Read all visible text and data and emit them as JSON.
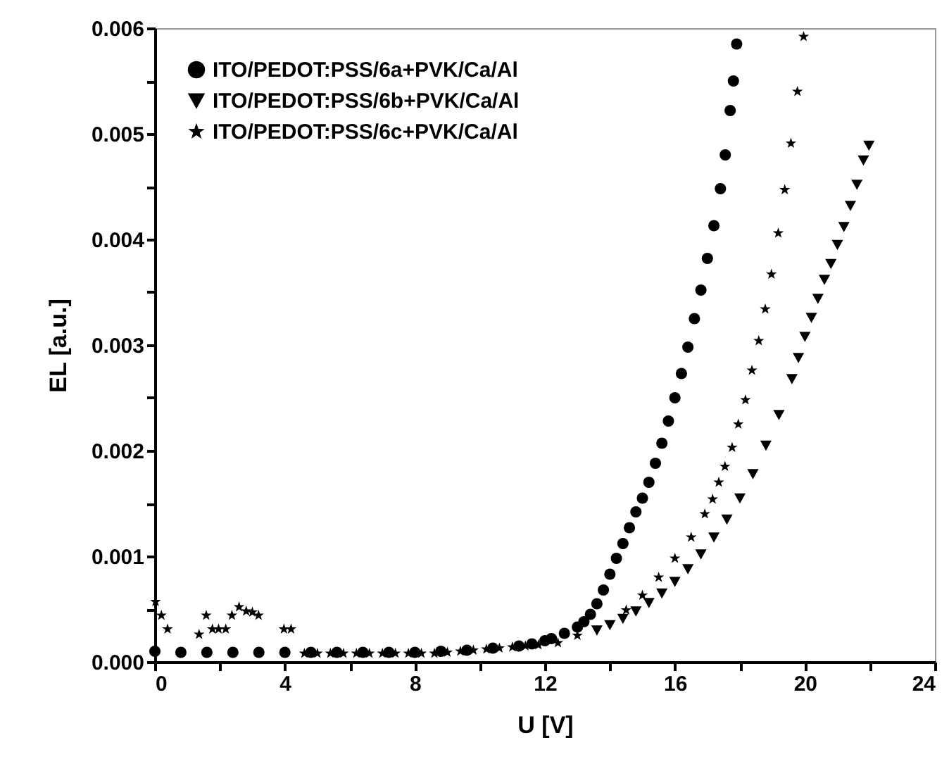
{
  "chart_data": {
    "type": "scatter",
    "xlabel": "U [V]",
    "ylabel": "EL [a.u.]",
    "xlim": [
      0,
      24
    ],
    "ylim": [
      0,
      0.006
    ],
    "xticks": [
      0,
      {
        "value": 2,
        "label": null
      },
      4,
      {
        "value": 6,
        "label": null
      },
      8,
      {
        "value": 10,
        "label": null
      },
      12,
      {
        "value": 14,
        "label": null
      },
      16,
      {
        "value": 18,
        "label": null
      },
      20,
      {
        "value": 22,
        "label": null
      },
      24
    ],
    "yticks": [
      {
        "value": 0,
        "label": "0.000"
      },
      {
        "value": 0.0005,
        "label": null
      },
      {
        "value": 0.001,
        "label": "0.001"
      },
      {
        "value": 0.0015,
        "label": null
      },
      {
        "value": 0.002,
        "label": "0.002"
      },
      {
        "value": 0.0025,
        "label": null
      },
      {
        "value": 0.003,
        "label": "0.003"
      },
      {
        "value": 0.0035,
        "label": null
      },
      {
        "value": 0.004,
        "label": "0.004"
      },
      {
        "value": 0.0045,
        "label": null
      },
      {
        "value": 0.005,
        "label": "0.005"
      },
      {
        "value": 0.0055,
        "label": null
      },
      {
        "value": 0.006,
        "label": "0.006"
      }
    ],
    "grid": false,
    "legend": "top left",
    "series": [
      {
        "name": "ITO/PEDOT:PSS/6a+PVK/Ca/Al",
        "color": "#000000",
        "marker": "circle",
        "x": [
          0,
          0.8,
          1.6,
          2.4,
          3.2,
          4,
          4.8,
          5.6,
          6.4,
          7.2,
          8,
          8.8,
          9.6,
          10.4,
          11.2,
          11.6,
          12,
          12.2,
          12.6,
          13,
          13.2,
          13.4,
          13.6,
          13.8,
          14,
          14.2,
          14.4,
          14.6,
          14.8,
          15,
          15.2,
          15.4,
          15.6,
          15.8,
          16,
          16.2,
          16.4,
          16.6,
          16.8,
          17,
          17.2,
          17.4,
          17.55,
          17.7,
          17.8,
          17.9
        ],
        "values": [
          0.0001,
          9e-05,
          9e-05,
          9e-05,
          9e-05,
          9e-05,
          9e-05,
          9e-05,
          9e-05,
          9e-05,
          9e-05,
          0.0001,
          0.00011,
          0.00013,
          0.00015,
          0.00017,
          0.0002,
          0.00022,
          0.00027,
          0.00033,
          0.00038,
          0.00045,
          0.00055,
          0.00068,
          0.00083,
          0.00098,
          0.00112,
          0.00127,
          0.00142,
          0.00155,
          0.0017,
          0.00188,
          0.00207,
          0.00228,
          0.0025,
          0.00273,
          0.00298,
          0.00325,
          0.00352,
          0.00382,
          0.00413,
          0.00448,
          0.0048,
          0.00522,
          0.0055,
          0.00585
        ]
      },
      {
        "name": "ITO/PEDOT:PSS/6b+PVK/Ca/Al",
        "color": "#000000",
        "marker": "triangle",
        "x": [
          13.6,
          14,
          14.4,
          14.8,
          15.2,
          15.6,
          16,
          16.4,
          16.8,
          17.2,
          17.6,
          18,
          18.4,
          18.8,
          19.2,
          19.6,
          19.8,
          20,
          20.2,
          20.4,
          20.6,
          20.8,
          21,
          21.2,
          21.4,
          21.6,
          21.8,
          21.97
        ],
        "values": [
          0.0003,
          0.00035,
          0.00041,
          0.00048,
          0.00056,
          0.00065,
          0.00076,
          0.00088,
          0.00102,
          0.00118,
          0.00135,
          0.00155,
          0.00178,
          0.00205,
          0.00234,
          0.00268,
          0.00288,
          0.00308,
          0.00326,
          0.00344,
          0.00362,
          0.00377,
          0.00395,
          0.00412,
          0.00432,
          0.00452,
          0.00475,
          0.00489
        ]
      },
      {
        "name": "ITO/PEDOT:PSS/6c+PVK/Ca/Al",
        "color": "#000000",
        "marker": "star",
        "x": [
          0.02,
          0.2,
          0.39,
          1.36,
          1.58,
          1.77,
          1.96,
          2.18,
          2.37,
          2.59,
          2.81,
          3,
          3.19,
          3.97,
          4.19,
          4.6,
          5,
          5.4,
          5.8,
          6.2,
          6.6,
          7,
          7.4,
          7.8,
          8.2,
          8.6,
          9,
          9.4,
          9.8,
          10.2,
          10.6,
          11,
          11.4,
          11.8,
          12.4,
          13,
          14.5,
          15,
          15.5,
          16,
          16.5,
          16.92,
          17.16,
          17.35,
          17.54,
          17.76,
          17.95,
          18.17,
          18.37,
          18.58,
          18.78,
          18.97,
          19.18,
          19.38,
          19.57,
          19.77,
          19.96
        ],
        "values": [
          0.00057,
          0.00044,
          0.00031,
          0.00026,
          0.00044,
          0.00031,
          0.00031,
          0.00031,
          0.00044,
          0.00052,
          0.00048,
          0.00047,
          0.00044,
          0.00031,
          0.00031,
          8e-05,
          8e-05,
          8e-05,
          8e-05,
          8e-05,
          8e-05,
          8e-05,
          8e-05,
          8e-05,
          8e-05,
          8e-05,
          9e-05,
          0.0001,
          0.00011,
          0.00012,
          0.00013,
          0.00014,
          0.00015,
          0.00016,
          0.00018,
          0.00025,
          0.00049,
          0.00063,
          0.0008,
          0.00098,
          0.00118,
          0.0014,
          0.00154,
          0.0017,
          0.00185,
          0.00203,
          0.00225,
          0.00248,
          0.00276,
          0.00304,
          0.00334,
          0.00367,
          0.00406,
          0.00447,
          0.00491,
          0.0054,
          0.00592
        ]
      }
    ]
  }
}
